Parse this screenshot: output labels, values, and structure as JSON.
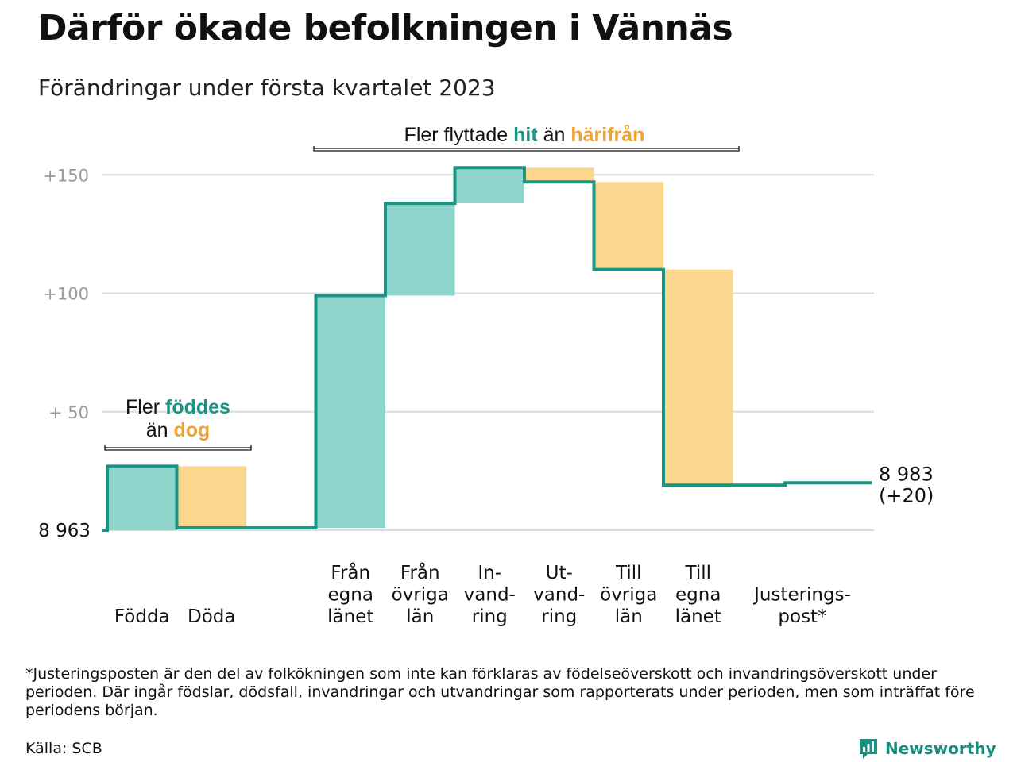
{
  "header": {
    "title": "Därför ökade befolkningen i Vännäs",
    "subtitle": "Förändringar under första kvartalet 2023"
  },
  "footer": {
    "footnote": "*Justeringsposten är den del av folkökningen som inte kan förklaras av födelseöverskott och invandringsöverskott under perioden. Där ingår födslar, dödsfall, invandringar och utvandringar som rapporterats under perioden, men som inträffat före periodens början.",
    "source": "Källa: SCB",
    "brand": "Newsworthy"
  },
  "colors": {
    "positive_fill": "#8dd5cb",
    "negative_fill": "#fbd68f",
    "line": "#1a9585",
    "positive_text": "#1a9585",
    "negative_text": "#f0a230",
    "grid": "#dcdcdc",
    "tick_text": "#9a9a9a"
  },
  "chart_data": {
    "type": "waterfall",
    "start_value": 8963,
    "start_label": "8 963",
    "end_value": 8983,
    "end_label_line1": "8 983",
    "end_label_line2": "(+20)",
    "yticks": [
      {
        "value": 50,
        "label": "+ 50"
      },
      {
        "value": 100,
        "label": "+100"
      },
      {
        "value": 150,
        "label": "+150"
      }
    ],
    "ylim": [
      0,
      160
    ],
    "steps": [
      {
        "label_lines": [
          "Födda"
        ],
        "change": 27,
        "sign": "positive"
      },
      {
        "label_lines": [
          "Döda"
        ],
        "change": -26,
        "sign": "negative"
      },
      {
        "label_lines": [
          ""
        ],
        "change": 0,
        "sign": "gap"
      },
      {
        "label_lines": [
          "Från",
          "egna",
          "länet"
        ],
        "change": 98,
        "sign": "positive"
      },
      {
        "label_lines": [
          "Från",
          "övriga",
          "län"
        ],
        "change": 39,
        "sign": "positive"
      },
      {
        "label_lines": [
          "In-",
          "vand-",
          "ring"
        ],
        "change": 15,
        "sign": "positive"
      },
      {
        "label_lines": [
          "Ut-",
          "vand-",
          "ring"
        ],
        "change": -6,
        "sign": "negative"
      },
      {
        "label_lines": [
          "Till",
          "övriga",
          "län"
        ],
        "change": -37,
        "sign": "negative"
      },
      {
        "label_lines": [
          "Till",
          "egna",
          "länet"
        ],
        "change": -91,
        "sign": "negative"
      },
      {
        "label_lines": [
          "Justerings-",
          "post*"
        ],
        "change": 1,
        "sign": "adjustment",
        "span": 2
      }
    ],
    "annotations": {
      "births": {
        "line1": "Fler ",
        "hit": "föddes",
        "line2": "än ",
        "away": "dog"
      },
      "migration": {
        "prefix": "Fler flyttade ",
        "hit": "hit",
        "middle": " än ",
        "away": "härifrån"
      }
    }
  }
}
